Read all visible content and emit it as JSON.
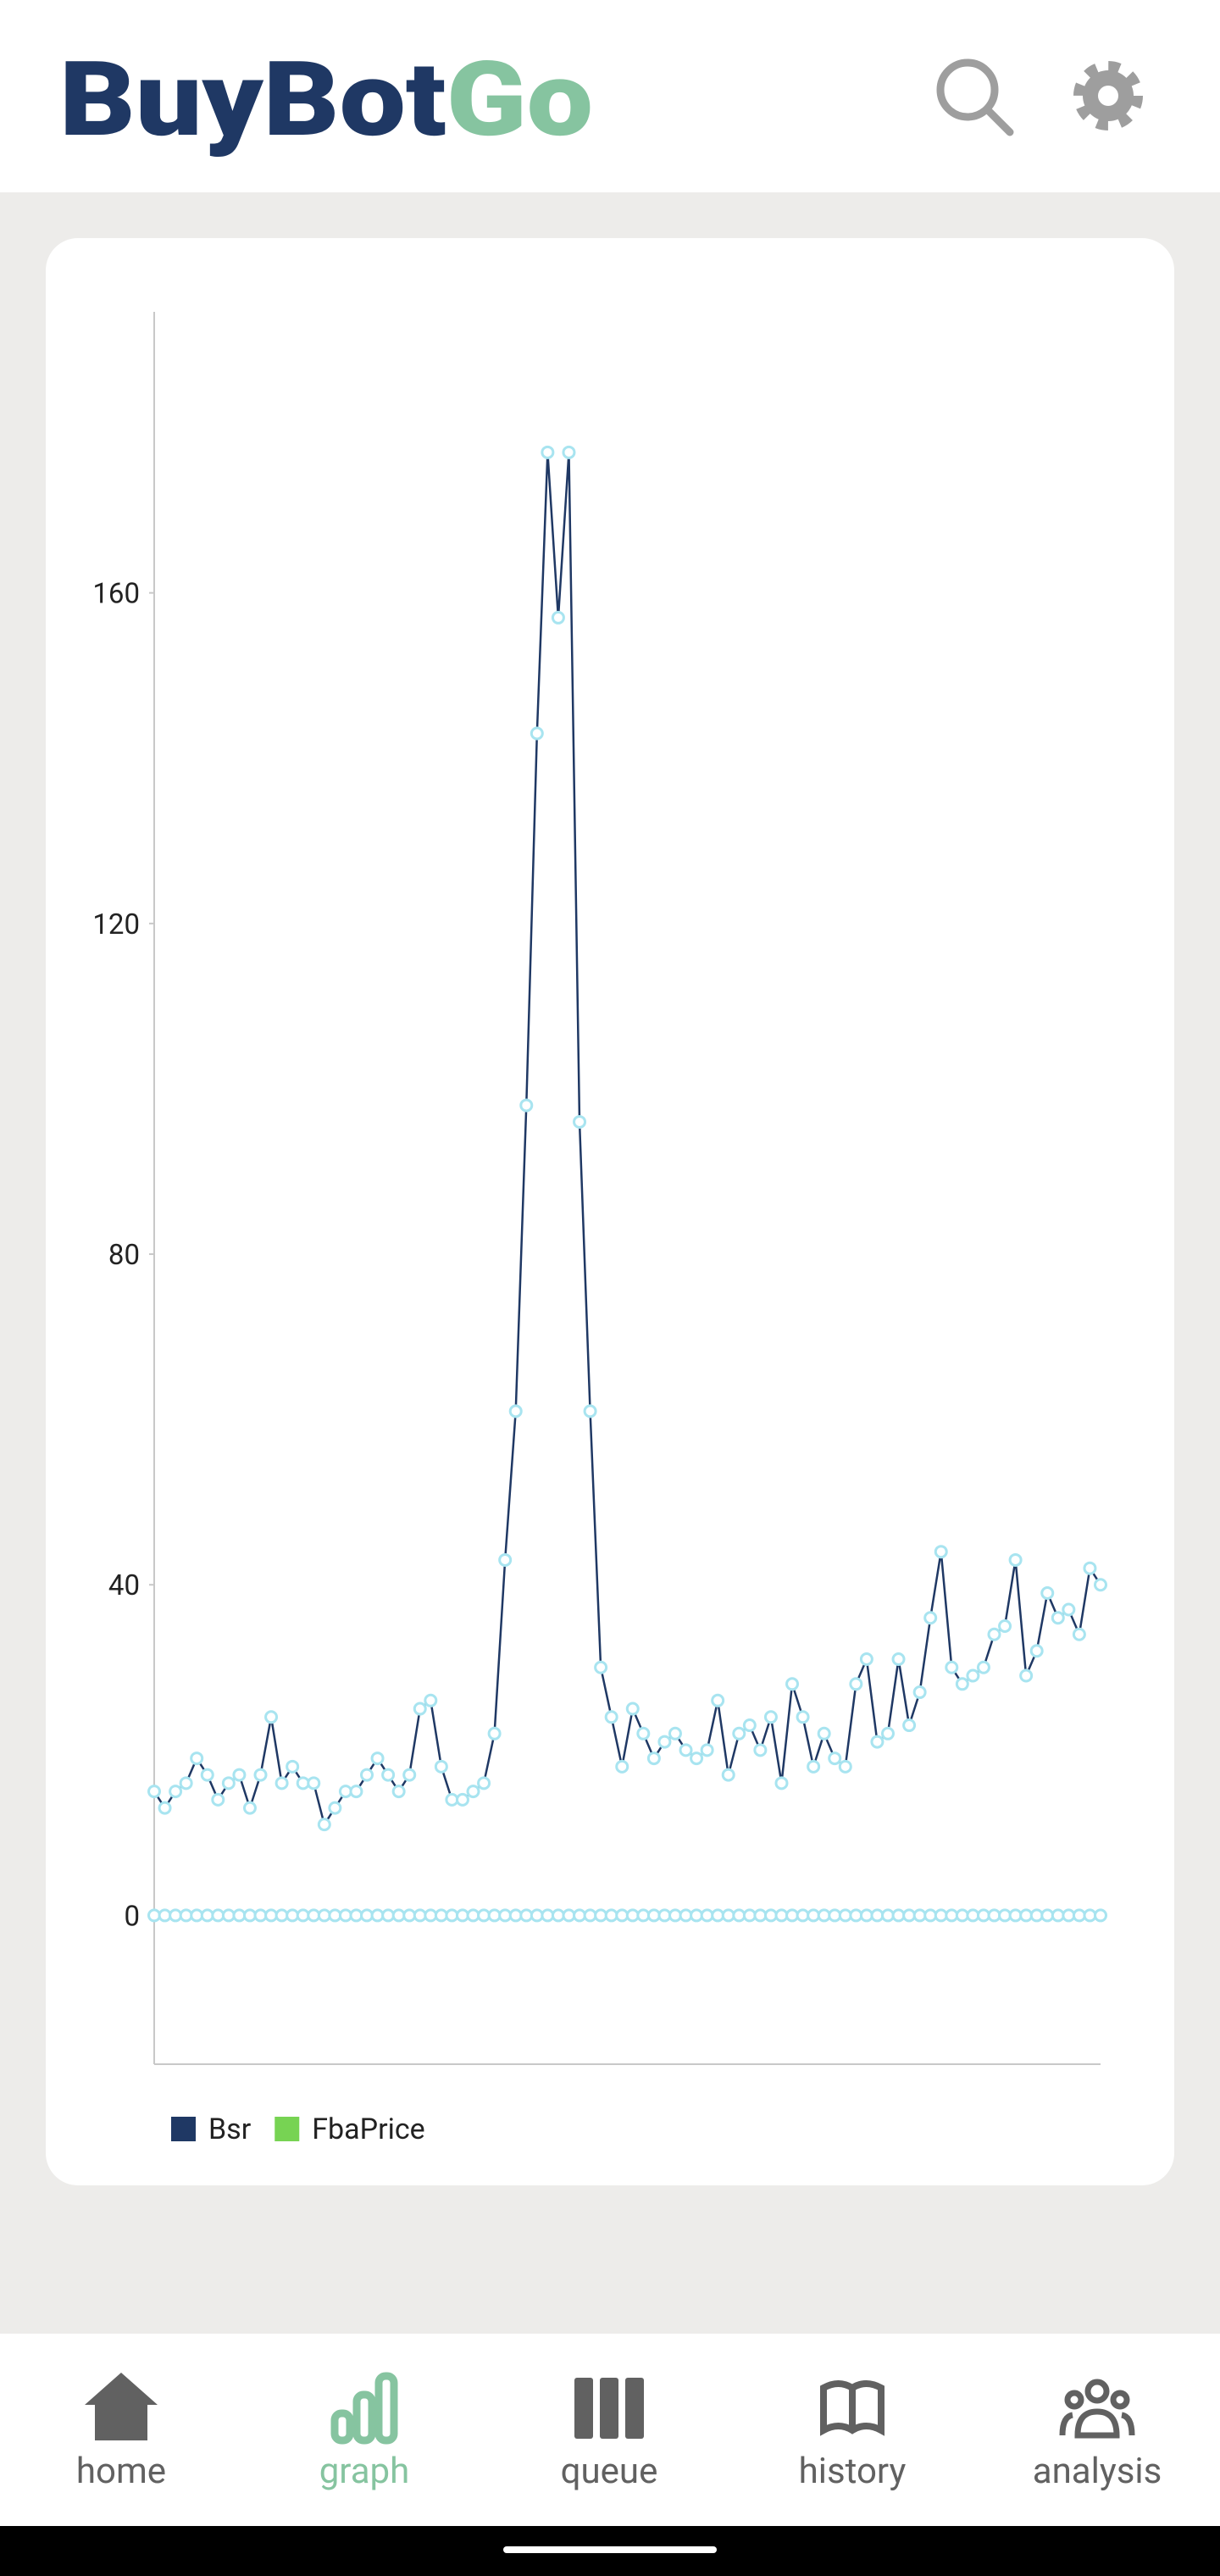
{
  "header": {
    "logo_primary": "BuyBot",
    "logo_accent": "Go"
  },
  "chart_data": {
    "type": "line",
    "ylim": [
      -18,
      194
    ],
    "yticks": [
      0,
      40,
      80,
      120,
      160
    ],
    "series": [
      {
        "name": "Bsr",
        "color": "#1f3864",
        "values": [
          15,
          13,
          15,
          16,
          19,
          17,
          14,
          16,
          17,
          13,
          17,
          24,
          16,
          18,
          16,
          16,
          11,
          13,
          15,
          15,
          17,
          19,
          17,
          15,
          17,
          25,
          26,
          18,
          14,
          14,
          15,
          16,
          22,
          43,
          61,
          98,
          143,
          177,
          157,
          177,
          96,
          61,
          30,
          24,
          18,
          25,
          22,
          19,
          21,
          22,
          20,
          19,
          20,
          26,
          17,
          22,
          23,
          20,
          24,
          16,
          28,
          24,
          18,
          22,
          19,
          18,
          28,
          31,
          21,
          22,
          31,
          23,
          27,
          36,
          44,
          30,
          28,
          29,
          30,
          34,
          35,
          43,
          29,
          32,
          39,
          36,
          37,
          34,
          42,
          40
        ]
      },
      {
        "name": "FbaPrice",
        "color": "#77d353",
        "values": [
          0,
          0,
          0,
          0,
          0,
          0,
          0,
          0,
          0,
          0,
          0,
          0,
          0,
          0,
          0,
          0,
          0,
          0,
          0,
          0,
          0,
          0,
          0,
          0,
          0,
          0,
          0,
          0,
          0,
          0,
          0,
          0,
          0,
          0,
          0,
          0,
          0,
          0,
          0,
          0,
          0,
          0,
          0,
          0,
          0,
          0,
          0,
          0,
          0,
          0,
          0,
          0,
          0,
          0,
          0,
          0,
          0,
          0,
          0,
          0,
          0,
          0,
          0,
          0,
          0,
          0,
          0,
          0,
          0,
          0,
          0,
          0,
          0,
          0,
          0,
          0,
          0,
          0,
          0,
          0,
          0,
          0,
          0,
          0,
          0,
          0,
          0,
          0,
          0,
          0
        ]
      }
    ],
    "marker_color": "#a8e4f0",
    "legend": "bottom-left"
  },
  "nav": {
    "items": [
      "home",
      "graph",
      "queue",
      "history",
      "analysis"
    ],
    "active": 1
  }
}
